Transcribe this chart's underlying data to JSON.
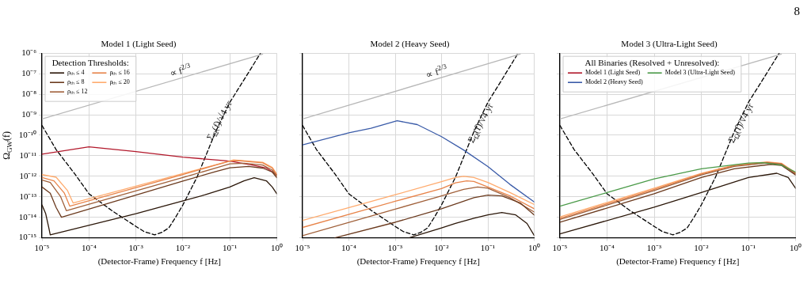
{
  "chart_data": [
    {
      "type": "line",
      "title": "Model 1 (Light Seed)",
      "xlabel": "(Detector-Frame) Frequency f [Hz]",
      "ylabel": "Ω$_{GW}$(f)",
      "legend_title": "Detection Thresholds:",
      "legend": "top left",
      "log": "xy",
      "grid": true,
      "marker": "none",
      "xlim": [
        1e-05,
        1
      ],
      "ylim": [
        1e-15,
        1e-06
      ],
      "xticks": [
        {
          "value": 1e-05,
          "label": "10⁻⁵"
        },
        {
          "value": 0.0001,
          "label": "10⁻⁴"
        },
        {
          "value": 0.001,
          "label": "10⁻³"
        },
        {
          "value": 0.01,
          "label": "10⁻²"
        },
        {
          "value": 0.1,
          "label": "10⁻¹"
        },
        {
          "value": 1,
          "label": "10⁰"
        }
      ],
      "yticks": [
        {
          "value": 1e-15,
          "label": "10⁻¹⁵"
        },
        {
          "value": 1e-14,
          "label": "10⁻¹⁴"
        },
        {
          "value": 1e-13,
          "label": "10⁻¹³"
        },
        {
          "value": 1e-12,
          "label": "10⁻¹²"
        },
        {
          "value": 1e-11,
          "label": "10⁻¹¹"
        },
        {
          "value": 1e-10,
          "label": "10⁻¹⁰"
        },
        {
          "value": 1e-09,
          "label": "10⁻⁹"
        },
        {
          "value": 1e-08,
          "label": "10⁻⁸"
        },
        {
          "value": 1e-07,
          "label": "10⁻⁷"
        },
        {
          "value": 1e-06,
          "label": "10⁻⁶"
        }
      ],
      "annotations": [
        "∝ f$^{2/3}$",
        "Σ$_{Ω}$(f)/√4 yr"
      ],
      "series": [
        {
          "name": "ρₜₕ ≤ 4",
          "color": "#2a1608",
          "x": [
            1e-05,
            1.2e-05,
            1.4e-05,
            1.5e-05,
            0.001,
            0.03,
            0.1,
            0.2,
            0.33,
            0.6,
            0.8,
            1
          ],
          "values": [
            4e-14,
            1.5e-14,
            3e-15,
            1.4e-15,
            1.5e-14,
            1.25e-13,
            3e-13,
            6e-13,
            8.5e-13,
            6e-13,
            3e-13,
            1.4e-13
          ]
        },
        {
          "name": "ρₜₕ ≤ 8",
          "color": "#6b3a1e",
          "x": [
            1e-05,
            1.5e-05,
            2e-05,
            2.6e-05,
            0.01,
            0.05,
            0.1,
            0.25,
            0.5,
            0.8,
            1
          ],
          "values": [
            3e-13,
            1.5e-13,
            3e-14,
            1e-14,
            5.8e-13,
            1.7e-12,
            2.6e-12,
            3e-12,
            2.5e-12,
            1.6e-12,
            8.5e-13
          ]
        },
        {
          "name": "ρₜₕ ≤ 12",
          "color": "#a0603a",
          "x": [
            1e-05,
            1.5e-05,
            2.5e-05,
            3.3e-05,
            0.01,
            0.05,
            0.1,
            0.2,
            0.5,
            0.8,
            1
          ],
          "values": [
            6.5e-13,
            5e-13,
            1e-13,
            2.1e-14,
            8.7e-13,
            2.5e-12,
            4e-12,
            4.3e-12,
            3.5e-12,
            2e-12,
            1e-12
          ]
        },
        {
          "name": "ρₜₕ ≤ 16",
          "color": "#e8844a",
          "x": [
            1e-05,
            1.8e-05,
            3e-05,
            3.9e-05,
            0.01,
            0.05,
            0.1,
            0.15,
            0.5,
            0.8,
            1
          ],
          "values": [
            8.7e-13,
            6e-13,
            1.5e-13,
            3.5e-14,
            1.2e-12,
            3.5e-12,
            5.5e-12,
            5.8e-12,
            4.5e-12,
            2.5e-12,
            1.15e-12
          ]
        },
        {
          "name": "ρₜₕ ≤ 20",
          "color": "#ffab6e",
          "x": [
            1e-05,
            2e-05,
            3.5e-05,
            4.6e-05,
            0.01,
            0.05,
            0.12,
            0.5,
            0.8,
            1
          ],
          "values": [
            1.2e-12,
            9e-13,
            2e-13,
            5e-14,
            1.35e-12,
            3.6e-12,
            6.2e-12,
            4.8e-12,
            2.7e-12,
            1.3e-12
          ]
        },
        {
          "color": "#b2182b",
          "x": [
            1e-05,
            0.0001,
            0.001,
            0.01,
            0.1,
            0.3,
            0.6,
            1
          ],
          "values": [
            1.2e-11,
            2.7e-11,
            1.6e-11,
            8.5e-12,
            5.5e-12,
            3.5e-12,
            2.5e-12,
            1.2e-12
          ]
        },
        {
          "color": "#b8b8b8",
          "x": [
            1e-05,
            0.5
          ],
          "values": [
            6.2e-10,
            9e-07
          ]
        },
        {
          "color": "#000000",
          "line_style": "dashed",
          "x": [
            1e-05,
            2e-05,
            5e-05,
            0.0001,
            0.0003,
            0.001,
            0.0015,
            0.0025,
            0.0035,
            0.005,
            0.007,
            0.01,
            0.02,
            0.05,
            0.1,
            0.2,
            0.45
          ],
          "values": [
            3e-10,
            2e-11,
            1.3e-12,
            1.4e-13,
            2.2e-14,
            3.6e-15,
            2e-15,
            1.4e-15,
            1.8e-15,
            3e-15,
            1e-14,
            4e-14,
            9e-13,
            1.5e-10,
            4e-09,
            5e-08,
            1e-06
          ]
        }
      ]
    },
    {
      "type": "line",
      "title": "Model 2 (Heavy Seed)",
      "xlabel": "(Detector-Frame) Frequency f [Hz]",
      "log": "xy",
      "grid": true,
      "marker": "none",
      "tick_labels": "x",
      "xlim": [
        1e-05,
        1
      ],
      "ylim": [
        1e-15,
        1e-06
      ],
      "xticks": [
        {
          "value": 1e-05,
          "label": "10⁻⁵"
        },
        {
          "value": 0.0001,
          "label": "10⁻⁴"
        },
        {
          "value": 0.001,
          "label": "10⁻³"
        },
        {
          "value": 0.01,
          "label": "10⁻²"
        },
        {
          "value": 0.1,
          "label": "10⁻¹"
        },
        {
          "value": 1,
          "label": "10⁰"
        }
      ],
      "yticks": [
        {
          "value": 1e-15,
          "label": null
        },
        {
          "value": 1e-14,
          "label": null
        },
        {
          "value": 1e-13,
          "label": null
        },
        {
          "value": 1e-12,
          "label": null
        },
        {
          "value": 1e-11,
          "label": null
        },
        {
          "value": 1e-10,
          "label": null
        },
        {
          "value": 1e-09,
          "label": null
        },
        {
          "value": 1e-08,
          "label": null
        },
        {
          "value": 1e-07,
          "label": null
        },
        {
          "value": 1e-06,
          "label": null
        }
      ],
      "annotations": [
        "∝ f$^{2/3}$",
        "Σ$_{Ω}$(f)/√4 yr"
      ],
      "series": [
        {
          "color": "#2a1608",
          "x": [
            0.002,
            0.01,
            0.02,
            0.05,
            0.1,
            0.2,
            0.4,
            0.7,
            1
          ],
          "values": [
            1e-15,
            3e-15,
            5e-15,
            9e-15,
            1.3e-14,
            1.7e-14,
            1.3e-14,
            5e-15,
            1.3e-15
          ]
        },
        {
          "color": "#6b3a1e",
          "x": [
            5e-05,
            0.001,
            0.01,
            0.05,
            0.1,
            0.2,
            0.5,
            1
          ],
          "values": [
            1e-15,
            5.7e-15,
            2.6e-14,
            9e-14,
            1.2e-13,
            1.1e-13,
            5e-14,
            1.3e-14
          ]
        },
        {
          "color": "#a0603a",
          "x": [
            1e-05,
            0.001,
            0.01,
            0.03,
            0.06,
            0.1,
            0.3,
            1
          ],
          "values": [
            1.26e-15,
            2.5e-14,
            1.1e-13,
            2.3e-13,
            3e-13,
            2.6e-13,
            9e-14,
            1.8e-14
          ]
        },
        {
          "color": "#e8844a",
          "x": [
            1e-05,
            0.001,
            0.01,
            0.02,
            0.035,
            0.05,
            0.1,
            0.3,
            1
          ],
          "values": [
            3.2e-15,
            6e-14,
            2.5e-13,
            4.8e-13,
            6e-13,
            5.6e-13,
            3e-13,
            1.1e-13,
            2.6e-14
          ]
        },
        {
          "color": "#ffab6e",
          "x": [
            1e-05,
            0.001,
            0.01,
            0.02,
            0.03,
            0.05,
            0.1,
            0.3,
            1
          ],
          "values": [
            7e-15,
            1.25e-13,
            5.5e-13,
            8.7e-13,
            1e-12,
            8.7e-13,
            5e-13,
            1.6e-13,
            4.2e-14
          ]
        },
        {
          "color": "#3a5ba8",
          "x": [
            1e-05,
            0.0001,
            0.0003,
            0.0011,
            0.003,
            0.01,
            0.03,
            0.1,
            0.3,
            1
          ],
          "values": [
            3.4e-11,
            1.3e-10,
            2.2e-10,
            5.1e-10,
            3.3e-10,
            8.5e-11,
            1.9e-11,
            3e-12,
            4e-13,
            5.6e-14
          ]
        },
        {
          "color": "#b8b8b8",
          "x": [
            1e-05,
            0.5
          ],
          "values": [
            6.2e-10,
            9e-07
          ]
        },
        {
          "color": "#000000",
          "line_style": "dashed",
          "x": [
            1e-05,
            2e-05,
            5e-05,
            0.0001,
            0.0003,
            0.001,
            0.0015,
            0.0025,
            0.0035,
            0.005,
            0.007,
            0.01,
            0.02,
            0.05,
            0.1,
            0.2,
            0.45
          ],
          "values": [
            3e-10,
            2e-11,
            1.3e-12,
            1.4e-13,
            2.2e-14,
            3.6e-15,
            2e-15,
            1.4e-15,
            1.8e-15,
            3e-15,
            1e-14,
            4e-14,
            9e-13,
            1.5e-10,
            4e-09,
            5e-08,
            1e-06
          ]
        }
      ]
    },
    {
      "type": "line",
      "title": "Model 3 (Ultra-Light Seed)",
      "xlabel": "(Detector-Frame) Frequency f [Hz]",
      "legend_title": "All Binaries (Resolved + Unresolved):",
      "legend": "top left",
      "log": "xy",
      "grid": true,
      "marker": "none",
      "tick_labels": "x",
      "xlim": [
        1e-05,
        1
      ],
      "ylim": [
        1e-15,
        1e-06
      ],
      "xticks": [
        {
          "value": 1e-05,
          "label": "10⁻⁵"
        },
        {
          "value": 0.0001,
          "label": "10⁻⁴"
        },
        {
          "value": 0.001,
          "label": "10⁻³"
        },
        {
          "value": 0.01,
          "label": "10⁻²"
        },
        {
          "value": 0.1,
          "label": "10⁻¹"
        },
        {
          "value": 1,
          "label": "10⁰"
        }
      ],
      "yticks": [
        {
          "value": 1e-15,
          "label": null
        },
        {
          "value": 1e-14,
          "label": null
        },
        {
          "value": 1e-13,
          "label": null
        },
        {
          "value": 1e-12,
          "label": null
        },
        {
          "value": 1e-11,
          "label": null
        },
        {
          "value": 1e-10,
          "label": null
        },
        {
          "value": 1e-09,
          "label": null
        },
        {
          "value": 1e-08,
          "label": null
        },
        {
          "value": 1e-07,
          "label": null
        },
        {
          "value": 1e-06,
          "label": null
        }
      ],
      "annotations": [
        "Σ$_{Ω}$(f)/√4 yr",
        "8"
      ],
      "series": [
        {
          "name": "Model 1 (Light Seed)",
          "color": "#b2182b"
        },
        {
          "name": "Model 2 (Heavy Seed)",
          "color": "#3a5ba8"
        },
        {
          "name": "Model 3 (Ultra-Light Seed)",
          "color": "#4a9a48",
          "x": [
            1e-05,
            0.0001,
            0.001,
            0.01,
            0.1,
            0.2,
            0.5,
            1
          ],
          "values": [
            3.5e-14,
            1.6e-13,
            7.5e-13,
            2.3e-12,
            4.4e-12,
            4.6e-12,
            3.5e-12,
            1.6e-12
          ]
        },
        {
          "color": "#2a1608",
          "x": [
            1e-05,
            0.001,
            0.01,
            0.1,
            0.4,
            0.7,
            1
          ],
          "values": [
            1.55e-15,
            3.1e-14,
            1.6e-13,
            8.7e-13,
            1.4e-12,
            8.7e-13,
            2.6e-13
          ]
        },
        {
          "color": "#6b3a1e",
          "x": [
            1e-05,
            0.001,
            0.01,
            0.05,
            0.3,
            0.5,
            1
          ],
          "values": [
            5.7e-15,
            1.4e-13,
            8.7e-13,
            2.3e-12,
            3.8e-12,
            3.4e-12,
            1.15e-12
          ]
        },
        {
          "color": "#a0603a",
          "x": [
            1e-05,
            0.001,
            0.01,
            0.05,
            0.25,
            0.5,
            1
          ],
          "values": [
            7.8e-15,
            2e-13,
            1.15e-12,
            3e-12,
            4.5e-12,
            3.9e-12,
            1.3e-12
          ]
        },
        {
          "color": "#e8844a",
          "x": [
            1e-05,
            0.001,
            0.01,
            0.05,
            0.25,
            0.5,
            1
          ],
          "values": [
            9e-15,
            2.3e-13,
            1.3e-12,
            3.3e-12,
            4.8e-12,
            4.1e-12,
            1.4e-12
          ]
        },
        {
          "color": "#ffab6e",
          "x": [
            1e-05,
            0.001,
            0.01,
            0.05,
            0.25,
            0.5,
            1
          ],
          "values": [
            1.05e-14,
            2.6e-13,
            1.4e-12,
            3.5e-12,
            5e-12,
            4.3e-12,
            1.5e-12
          ]
        },
        {
          "color": "#b8b8b8",
          "x": [
            1e-05,
            0.5
          ],
          "values": [
            6.2e-10,
            9e-07
          ]
        },
        {
          "color": "#000000",
          "line_style": "dashed",
          "x": [
            1e-05,
            2e-05,
            5e-05,
            0.0001,
            0.0003,
            0.001,
            0.0015,
            0.0025,
            0.0035,
            0.005,
            0.007,
            0.01,
            0.02,
            0.05,
            0.1,
            0.2,
            0.45
          ],
          "values": [
            3e-10,
            2e-11,
            1.3e-12,
            1.4e-13,
            2.2e-14,
            3.6e-15,
            2e-15,
            1.4e-15,
            1.8e-15,
            3e-15,
            1e-14,
            4e-14,
            9e-13,
            1.5e-10,
            4e-09,
            5e-08,
            1e-06
          ]
        }
      ]
    }
  ]
}
